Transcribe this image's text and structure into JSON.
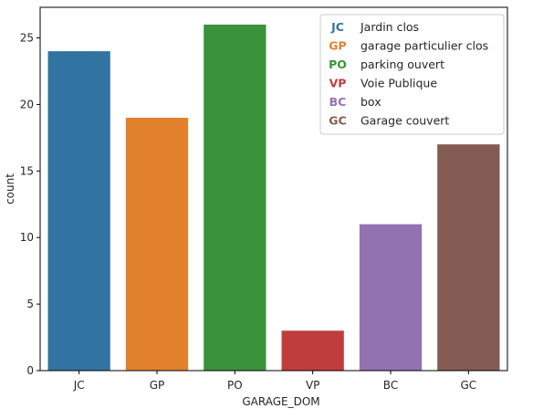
{
  "chart_data": {
    "type": "bar",
    "categories": [
      "JC",
      "GP",
      "PO",
      "VP",
      "BC",
      "GC"
    ],
    "values": [
      24,
      19,
      26,
      3,
      11,
      17
    ],
    "colors": [
      "#3274a1",
      "#e1812c",
      "#3a923a",
      "#c03d3e",
      "#9372b2",
      "#845b53"
    ],
    "xlabel": "GARAGE_DOM",
    "ylabel": "count",
    "ylim": [
      0,
      27.3
    ],
    "yticks": [
      0,
      5,
      10,
      15,
      20,
      25
    ],
    "grid": false,
    "legend_position": "top-right",
    "legend": [
      {
        "abbr": "JC",
        "label": "Jardin clos",
        "color": "#3274a1"
      },
      {
        "abbr": "GP",
        "label": "garage particulier clos",
        "color": "#e1812c"
      },
      {
        "abbr": "PO",
        "label": "parking ouvert",
        "color": "#3a923a"
      },
      {
        "abbr": "VP",
        "label": "Voie Publique",
        "color": "#c03d3e"
      },
      {
        "abbr": "BC",
        "label": "box",
        "color": "#9372b2"
      },
      {
        "abbr": "GC",
        "label": "Garage couvert",
        "color": "#845b53"
      }
    ]
  }
}
